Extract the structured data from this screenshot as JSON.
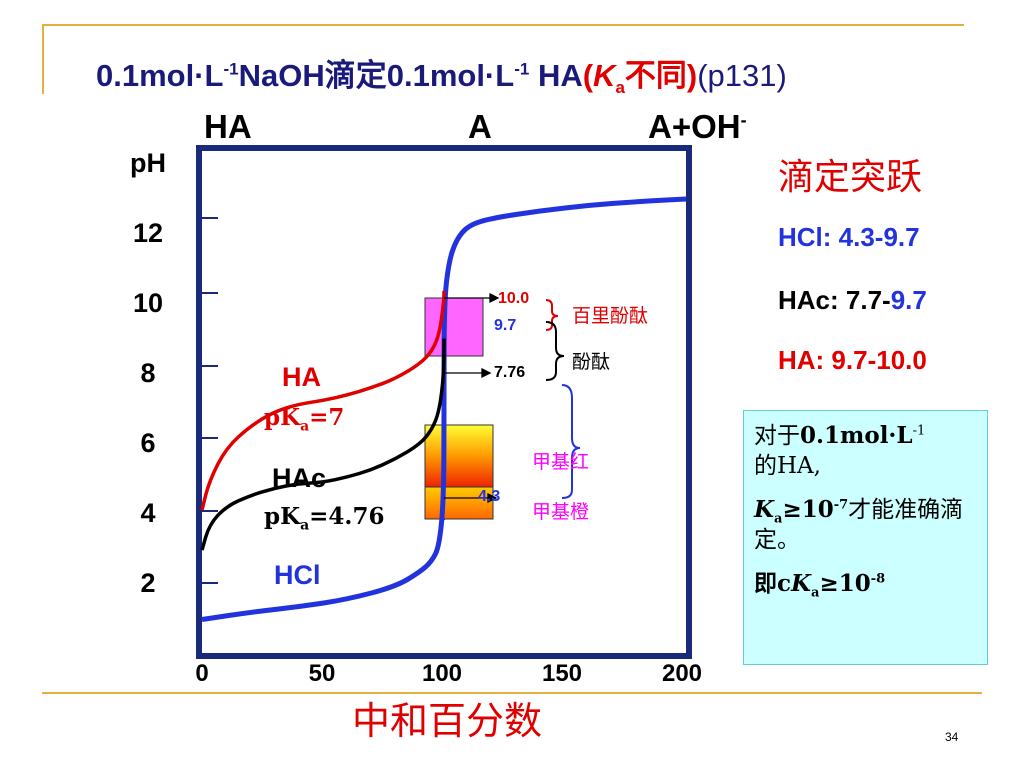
{
  "title": {
    "part1": "0.1mol·L",
    "part1_sup": "-1",
    "part2": "NaOH滴定0.1mol·L",
    "part2_sup": "-1",
    "part3": " HA",
    "part4_open": "(",
    "part4_k": "K",
    "part4_ksub": "a",
    "part4_text": "不同)",
    "part5": "(p131)"
  },
  "chart_headers": {
    "ha": "HA",
    "a": "A",
    "a_oh": "A+OH",
    "a_oh_sup": "-"
  },
  "chart_data": {
    "type": "line",
    "xlabel": "中和百分数",
    "ylabel": "pH",
    "x_ticks": [
      "0",
      "50",
      "100",
      "150",
      "200"
    ],
    "y_ticks": [
      "12",
      "10",
      "8",
      "6",
      "4",
      "2"
    ],
    "xlim": [
      0,
      200
    ],
    "ylim": [
      0,
      14
    ],
    "series": [
      {
        "name": "HCl",
        "color": "#2233dd",
        "x": [
          0,
          20,
          40,
          60,
          80,
          90,
          95,
          98,
          99.9,
          100,
          100.1,
          102,
          105,
          110,
          120,
          140,
          160,
          180,
          200
        ],
        "y": [
          1.0,
          1.2,
          1.35,
          1.55,
          1.9,
          2.3,
          2.6,
          3.0,
          4.3,
          7.0,
          9.7,
          10.8,
          11.4,
          11.8,
          12.0,
          12.2,
          12.35,
          12.45,
          12.52
        ]
      },
      {
        "name": "HAc",
        "color": "#000000",
        "x": [
          0,
          3,
          10,
          20,
          30,
          40,
          50,
          60,
          70,
          80,
          90,
          95,
          98,
          99.9,
          100
        ],
        "y": [
          2.9,
          3.6,
          4.1,
          4.4,
          4.6,
          4.72,
          4.76,
          4.9,
          5.1,
          5.4,
          5.8,
          6.2,
          6.7,
          7.7,
          8.7
        ]
      },
      {
        "name": "HA",
        "color": "#e00000",
        "x": [
          0,
          3,
          10,
          20,
          30,
          40,
          50,
          60,
          70,
          80,
          90,
          95,
          98,
          99.9,
          100
        ],
        "y": [
          4.0,
          4.8,
          5.7,
          6.3,
          6.7,
          6.9,
          7.0,
          7.15,
          7.35,
          7.6,
          8.0,
          8.35,
          8.8,
          9.7,
          10.0
        ]
      }
    ],
    "series_labels": {
      "ha": "HA",
      "ha_pka": "pK",
      "ha_pka_sub": "a",
      "ha_pka_val": "=7",
      "hac": "HAc",
      "hac_pka": "pK",
      "hac_pka_sub": "a",
      "hac_pka_val": "=4.76",
      "hcl": "HCl"
    },
    "indicators": {
      "phenolphthalein_range": {
        "low": 8.0,
        "high": 10.0,
        "color": "#ff66ff"
      },
      "methyl_red_range": {
        "low": 4.4,
        "high": 6.2
      },
      "methyl_orange_range": {
        "low": 3.1,
        "high": 4.4
      },
      "marks": [
        "10.0",
        "9.7",
        "7.76",
        "4.3"
      ],
      "names": {
        "thymolphthalein": "百里酚酞",
        "phenolphthalein": "酚酞",
        "methyl_red": "甲基红",
        "methyl_orange": "甲基橙"
      }
    }
  },
  "jump_ranges": {
    "title": "滴定突跃",
    "hcl_label": "HCl: 4.3-9.7",
    "hac_label": "HAc: 7.7-",
    "hac_end": "9.7",
    "ha_label": "HA: 9.7-10.0"
  },
  "note": {
    "line1_a": "对于",
    "line1_b": "0.1mol·L",
    "line1_sup": "-1",
    "line2": "的HA,",
    "line3_k": "K",
    "line3_sub": "a",
    "line3_val": "≥10",
    "line3_sup": "-7",
    "line3_text": "才能准确滴定。",
    "line4_a": "即c",
    "line4_k": "K",
    "line4_sub": "a",
    "line4_val": "≥10",
    "line4_sup": "-8"
  },
  "page_number": "34",
  "colors": {
    "title": "#1a1a7a",
    "accent_red": "#e00000",
    "accent_blue": "#2233dd",
    "deco_line": "#e0b040",
    "note_bg": "#ccffff"
  }
}
